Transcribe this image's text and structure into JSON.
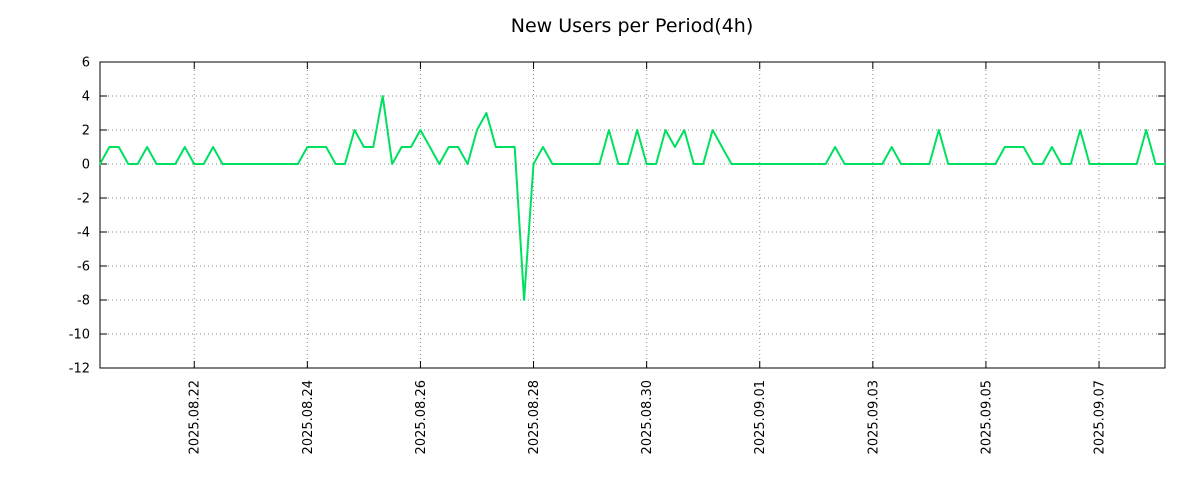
{
  "chart_data": {
    "type": "line",
    "title": "New Users per Period(4h)",
    "xlabel": "",
    "ylabel": "",
    "ylim": [
      -12,
      6
    ],
    "y_ticks": [
      6,
      4,
      2,
      0,
      -2,
      -4,
      -6,
      -8,
      -10,
      -12
    ],
    "x_tick_labels": [
      "2025.08.22",
      "2025.08.24",
      "2025.08.26",
      "2025.08.28",
      "2025.08.30",
      "2025.09.01",
      "2025.09.03",
      "2025.09.05",
      "2025.09.07"
    ],
    "x_tick_indices": [
      10,
      22,
      34,
      46,
      58,
      70,
      82,
      94,
      106
    ],
    "period_hours": 4,
    "grid": true,
    "legend_position": "none",
    "series_color": "#00e05f",
    "values": [
      0,
      1,
      1,
      0,
      0,
      1,
      0,
      0,
      0,
      1,
      0,
      0,
      1,
      0,
      0,
      0,
      0,
      0,
      0,
      0,
      0,
      0,
      1,
      1,
      1,
      0,
      0,
      2,
      1,
      1,
      4,
      0,
      1,
      1,
      2,
      1,
      0,
      1,
      1,
      0,
      2,
      3,
      1,
      1,
      1,
      -8,
      0,
      1,
      0,
      0,
      0,
      0,
      0,
      0,
      2,
      0,
      0,
      2,
      0,
      0,
      2,
      1,
      2,
      0,
      0,
      2,
      1,
      0,
      0,
      0,
      0,
      0,
      0,
      0,
      0,
      0,
      0,
      0,
      1,
      0,
      0,
      0,
      0,
      0,
      1,
      0,
      0,
      0,
      0,
      2,
      0,
      0,
      0,
      0,
      0,
      0,
      1,
      1,
      1,
      0,
      0,
      1,
      0,
      0,
      2,
      0,
      0,
      0,
      0,
      0,
      0,
      2,
      0,
      0
    ]
  }
}
